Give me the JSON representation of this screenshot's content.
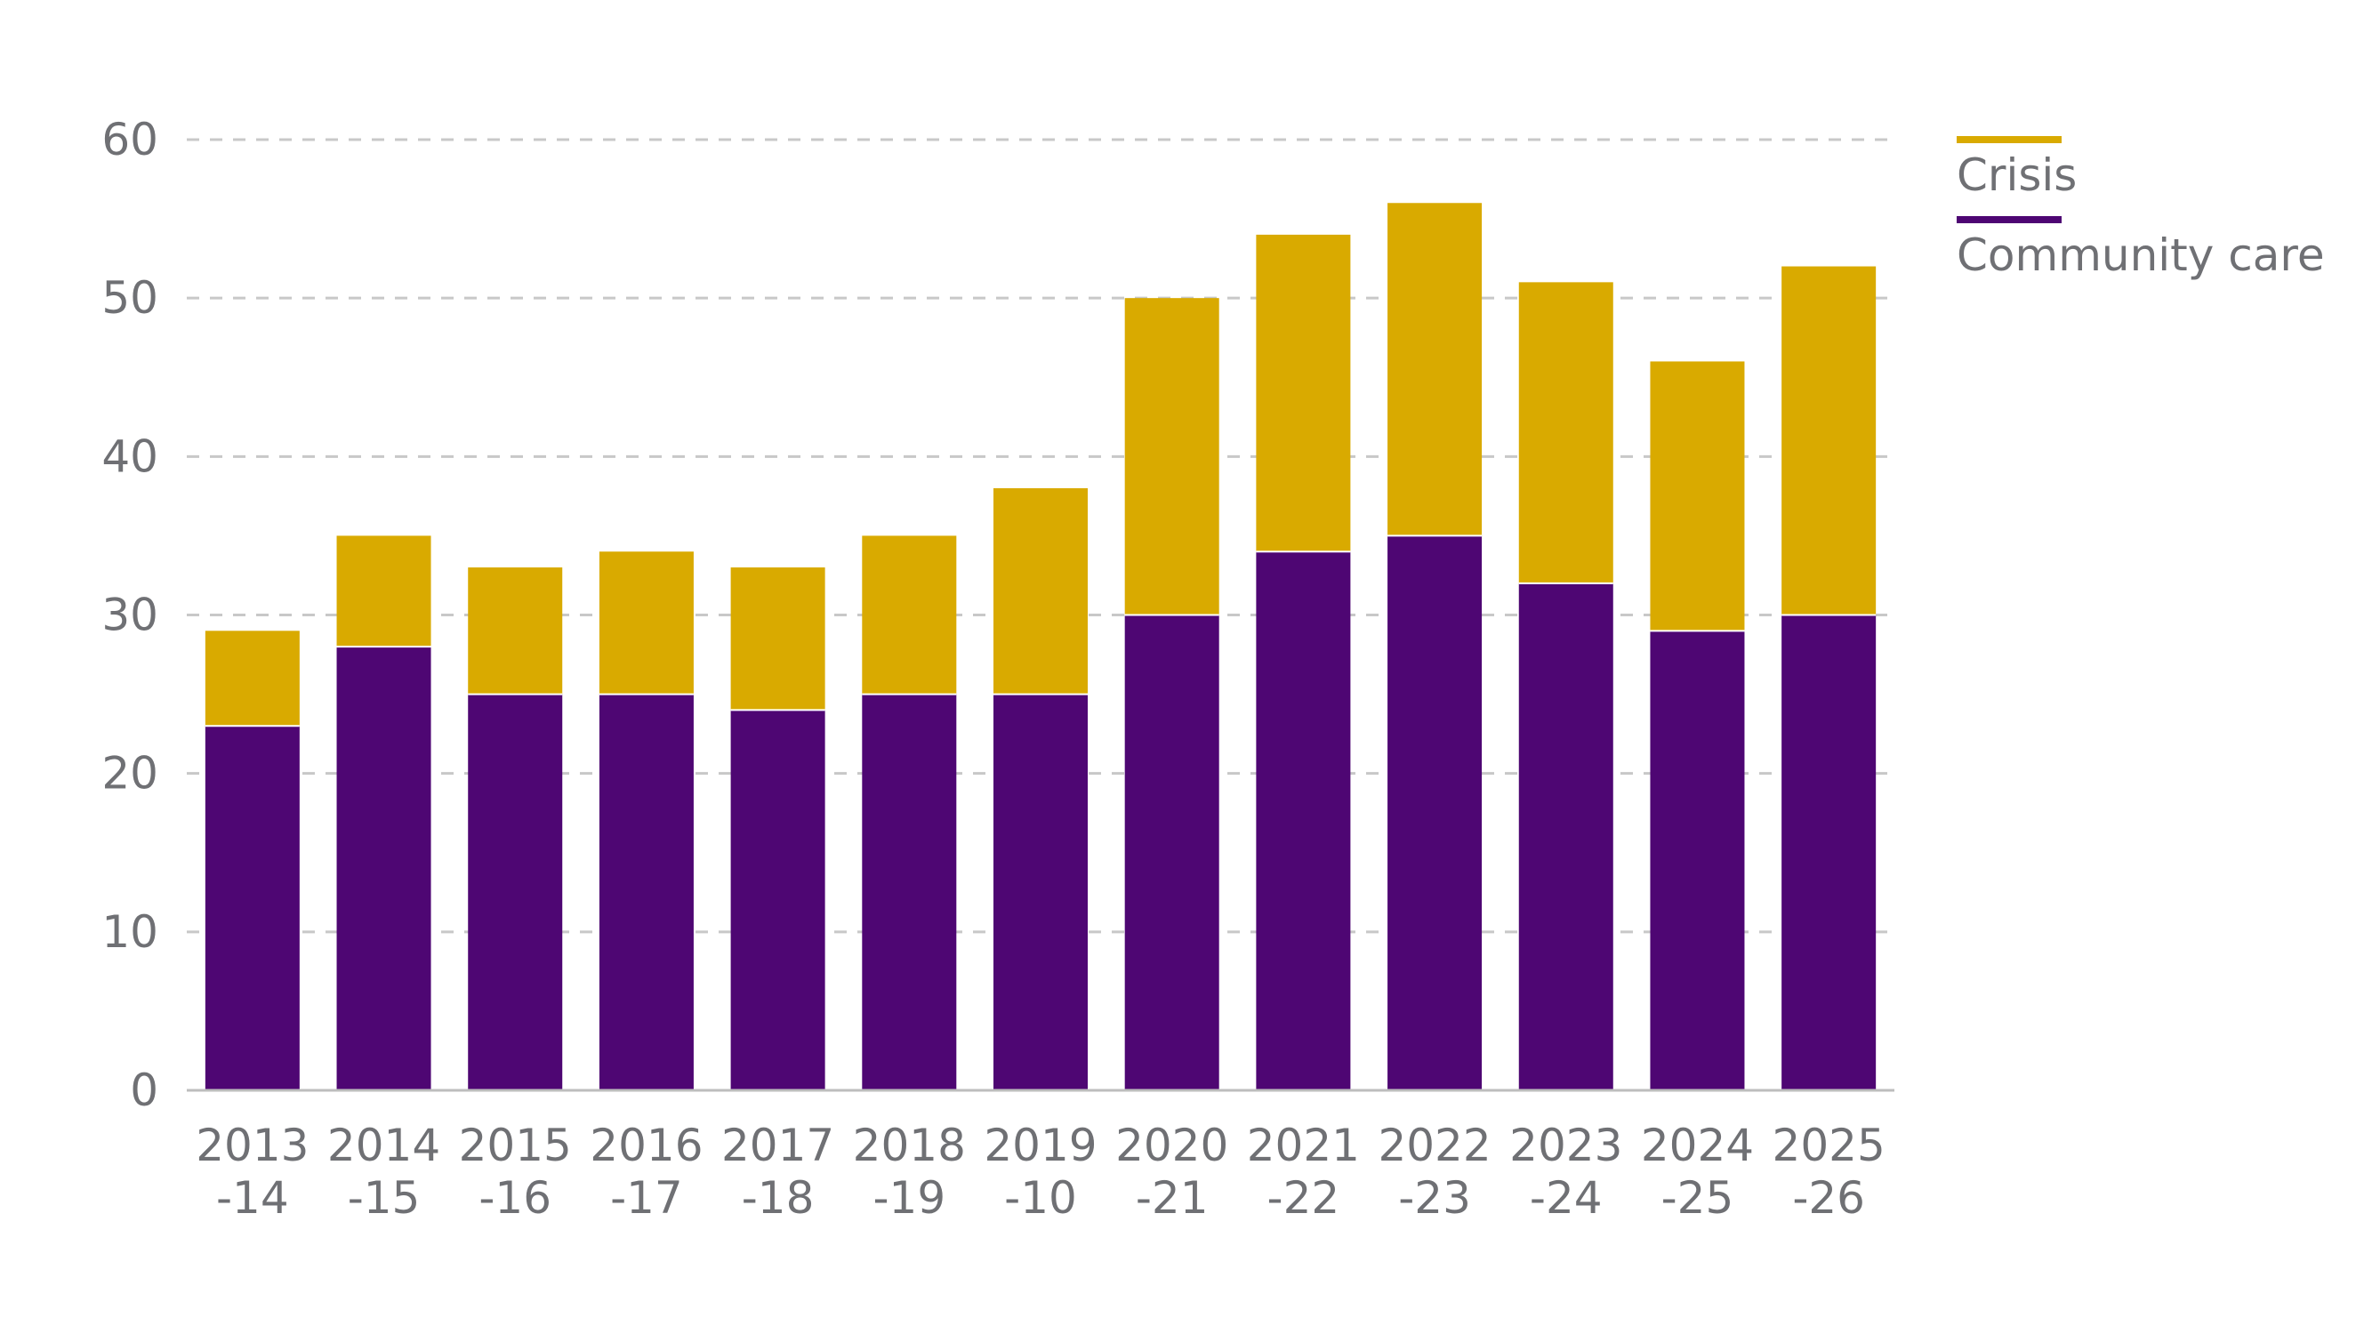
{
  "chart_data": {
    "type": "bar",
    "stacked": true,
    "categories": [
      [
        "2013",
        "-14"
      ],
      [
        "2014",
        "-15"
      ],
      [
        "2015",
        "-16"
      ],
      [
        "2016",
        "-17"
      ],
      [
        "2017",
        "-18"
      ],
      [
        "2018",
        "-19"
      ],
      [
        "2019",
        "-10"
      ],
      [
        "2020",
        "-21"
      ],
      [
        "2021",
        "-22"
      ],
      [
        "2022",
        "-23"
      ],
      [
        "2023",
        "-24"
      ],
      [
        "2024",
        "-25"
      ],
      [
        "2025",
        "-26"
      ]
    ],
    "series": [
      {
        "name": "Community care",
        "color": "#4e0673",
        "values": [
          23,
          28,
          25,
          25,
          24,
          25,
          25,
          30,
          34,
          35,
          32,
          29,
          30
        ]
      },
      {
        "name": "Crisis",
        "color": "#d9aa00",
        "values": [
          6,
          7,
          8,
          9,
          9,
          10,
          13,
          20,
          20,
          21,
          19,
          17,
          22
        ]
      }
    ],
    "ylim": [
      0,
      60
    ],
    "yticks": [
      0,
      10,
      20,
      30,
      40,
      50,
      60
    ],
    "grid": true,
    "legend": {
      "placement": "top-right",
      "order": [
        "Crisis",
        "Community care"
      ]
    },
    "colors": {
      "grid": "#c8c8c8",
      "axis": "#bdbdbd",
      "text": "#6f7074"
    }
  }
}
